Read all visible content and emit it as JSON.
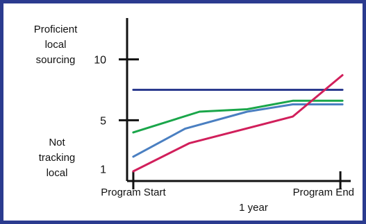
{
  "chart_data": {
    "type": "line",
    "title": "",
    "xlabel": "1 year",
    "ylabel": "",
    "y_top_label": [
      "Proficient",
      "local",
      "sourcing"
    ],
    "y_bottom_label": [
      "Not",
      "tracking",
      "local"
    ],
    "xticks": [
      {
        "x": 0,
        "label": "Program Start"
      },
      {
        "x": 1,
        "label": "Program End"
      }
    ],
    "yticks": [
      1,
      5,
      10
    ],
    "xlim": [
      -0.03,
      1.05
    ],
    "ylim": [
      0,
      13.4
    ],
    "grid": false,
    "legend": "none",
    "series": [
      {
        "color": "#2b3b8f",
        "x": [
          0,
          1.01
        ],
        "y": [
          7.5,
          7.5
        ]
      },
      {
        "color": "#1aa64a",
        "x": [
          0,
          0.32,
          0.55,
          0.77,
          1.01
        ],
        "y": [
          4.0,
          5.7,
          5.9,
          6.6,
          6.6
        ]
      },
      {
        "color": "#4a7fc1",
        "x": [
          0,
          0.25,
          0.55,
          0.77,
          1.01
        ],
        "y": [
          2.0,
          4.3,
          5.7,
          6.3,
          6.3
        ]
      },
      {
        "color": "#d11f5b",
        "x": [
          0,
          0.27,
          0.77,
          1.01
        ],
        "y": [
          0.8,
          3.1,
          5.3,
          8.7
        ]
      }
    ]
  }
}
